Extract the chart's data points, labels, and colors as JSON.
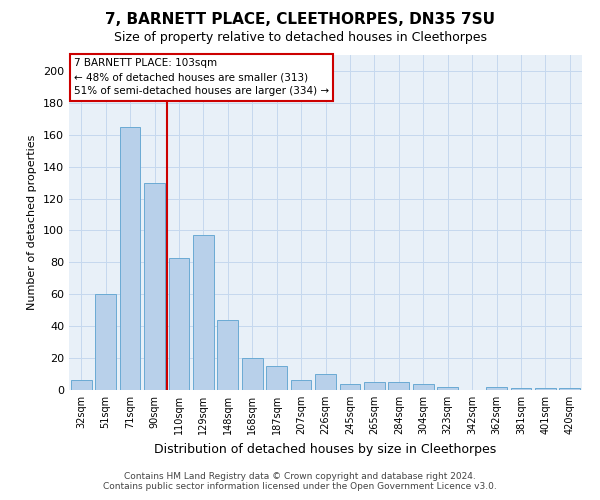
{
  "title": "7, BARNETT PLACE, CLEETHORPES, DN35 7SU",
  "subtitle": "Size of property relative to detached houses in Cleethorpes",
  "xlabel": "Distribution of detached houses by size in Cleethorpes",
  "ylabel": "Number of detached properties",
  "footer_line1": "Contains HM Land Registry data © Crown copyright and database right 2024.",
  "footer_line2": "Contains public sector information licensed under the Open Government Licence v3.0.",
  "categories": [
    "32sqm",
    "51sqm",
    "71sqm",
    "90sqm",
    "110sqm",
    "129sqm",
    "148sqm",
    "168sqm",
    "187sqm",
    "207sqm",
    "226sqm",
    "245sqm",
    "265sqm",
    "284sqm",
    "304sqm",
    "323sqm",
    "342sqm",
    "362sqm",
    "381sqm",
    "401sqm",
    "420sqm"
  ],
  "bar_values": [
    6,
    60,
    165,
    130,
    83,
    97,
    44,
    20,
    15,
    6,
    10,
    4,
    5,
    5,
    4,
    2,
    0,
    2,
    1,
    1,
    1
  ],
  "bar_color": "#b8d0ea",
  "bar_edge_color": "#6aaad4",
  "grid_color": "#c5d8ee",
  "bg_color": "#e8f0f8",
  "vline_pos": 3.5,
  "vline_color": "#cc0000",
  "annotation_text": "7 BARNETT PLACE: 103sqm\n← 48% of detached houses are smaller (313)\n51% of semi-detached houses are larger (334) →",
  "annotation_box_color": "#cc0000",
  "ylim": [
    0,
    210
  ],
  "yticks": [
    0,
    20,
    40,
    60,
    80,
    100,
    120,
    140,
    160,
    180,
    200
  ]
}
